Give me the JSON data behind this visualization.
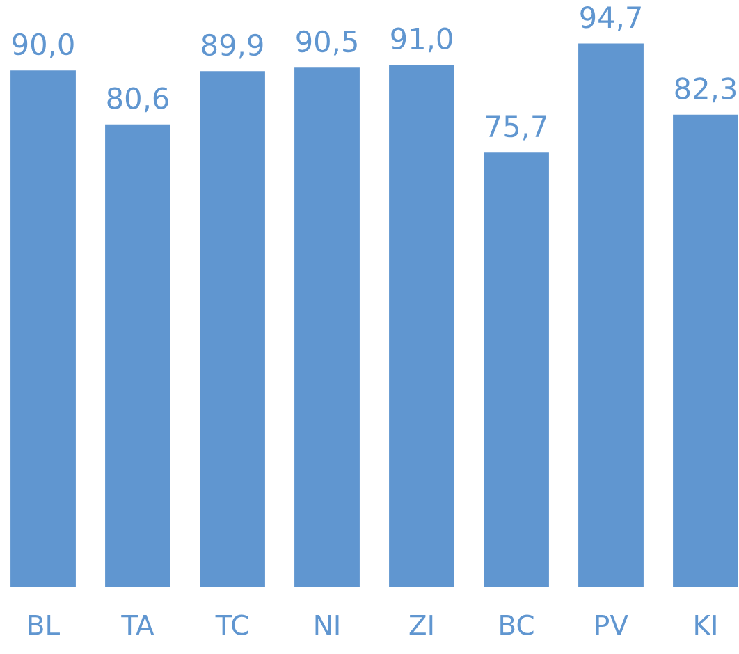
{
  "chart_data": {
    "type": "bar",
    "categories": [
      "BL",
      "TA",
      "TC",
      "NI",
      "ZI",
      "BC",
      "PV",
      "KI"
    ],
    "values": [
      90.0,
      80.6,
      89.9,
      90.5,
      91.0,
      75.7,
      94.7,
      82.3
    ],
    "value_labels": [
      "90,0",
      "80,6",
      "89,9",
      "90,5",
      "91,0",
      "75,7",
      "94,7",
      "82,3"
    ],
    "color": "#6096d0",
    "tick_labels": "x",
    "grid": false,
    "legend": false
  }
}
